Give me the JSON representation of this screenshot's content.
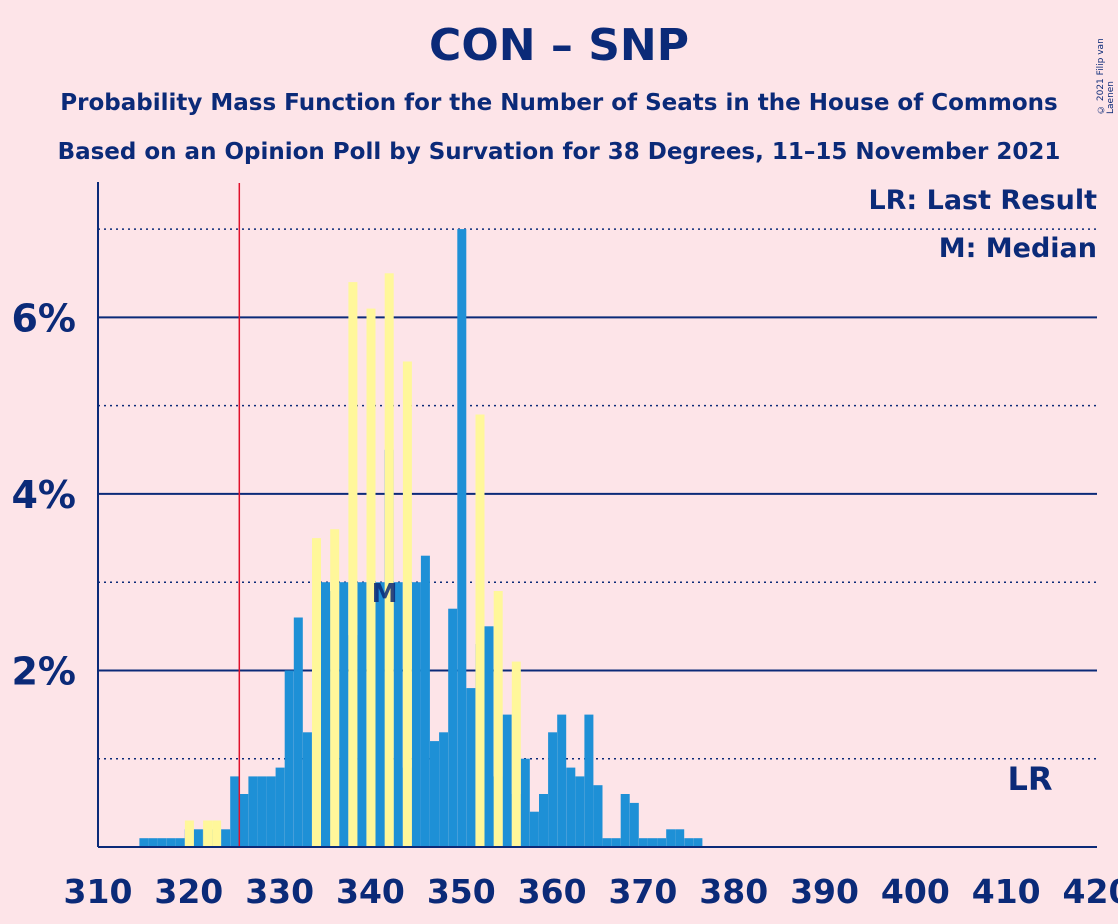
{
  "title": "CON – SNP",
  "subtitle1": "Probability Mass Function for the Number of Seats in the House of Commons",
  "subtitle2": "Based on an Opinion Poll by Survation for 38 Degrees, 11–15 November 2021",
  "copyright": "© 2021 Filip van Laenen",
  "legend": {
    "lr": "LR: Last Result",
    "m": "M: Median"
  },
  "lr_label": "LR",
  "median_label": "M",
  "colors": {
    "blue": "#1e90d6",
    "yellow": "#fff79a",
    "axis": "#0b2a78",
    "lr_line": "#e0102b",
    "background": "#fde4e8"
  },
  "chart_data": {
    "type": "bar",
    "xlim": [
      310,
      420
    ],
    "ylim": [
      0,
      7.5
    ],
    "x_ticks": [
      310,
      320,
      330,
      340,
      350,
      360,
      370,
      380,
      390,
      400,
      410,
      420
    ],
    "y_ticks": [
      {
        "value": 2,
        "label": "2%"
      },
      {
        "value": 4,
        "label": "4%"
      },
      {
        "value": 6,
        "label": "6%"
      }
    ],
    "last_result": 326,
    "median": 342,
    "series": [
      {
        "color": "blue",
        "x": [
          311,
          312,
          313,
          314,
          315,
          316,
          317,
          318,
          319,
          320,
          321,
          322,
          323,
          324,
          325,
          326,
          327,
          328,
          329,
          330,
          331,
          332,
          333,
          334,
          335,
          336,
          337,
          338,
          339,
          340,
          341,
          342,
          343,
          344,
          345,
          346,
          347,
          348,
          349,
          350,
          351,
          352,
          353,
          354,
          355,
          356,
          357,
          358,
          359,
          360,
          361,
          362,
          363,
          364,
          365,
          366,
          367,
          368,
          369,
          370,
          371,
          372,
          373,
          374,
          375,
          376,
          377,
          378,
          379,
          380,
          381,
          382,
          383,
          384,
          385,
          386,
          387,
          388,
          389,
          390,
          391,
          392,
          393,
          394,
          395,
          396,
          397,
          398,
          399,
          400,
          401,
          402,
          403,
          404,
          405,
          406,
          407,
          408,
          409,
          410,
          411,
          412,
          413,
          414,
          415,
          416,
          417,
          418,
          419
        ],
        "values": [
          0,
          0,
          0,
          0,
          0.1,
          0.1,
          0.1,
          0.1,
          0.1,
          0.2,
          0.2,
          0.2,
          0.2,
          0.2,
          0.8,
          0.6,
          0.8,
          0.8,
          0.8,
          0.9,
          2,
          2.6,
          1.3,
          1.8,
          3,
          2.9,
          3,
          2.4,
          3,
          3.4,
          3,
          4.5,
          3,
          0.9,
          3,
          3.3,
          1.2,
          1.3,
          2.7,
          7,
          1.8,
          2.3,
          2.5,
          0.8,
          1.5,
          0.6,
          1.0,
          0.4,
          0.6,
          1.3,
          1.5,
          0.9,
          0.8,
          1.5,
          0.7,
          0.1,
          0.1,
          0.6,
          0.5,
          0.1,
          0.1,
          0.1,
          0.2,
          0.2,
          0.1,
          0.1,
          0,
          0,
          0,
          0,
          0,
          0,
          0,
          0,
          0,
          0,
          0,
          0,
          0,
          0,
          0,
          0,
          0,
          0,
          0,
          0,
          0,
          0,
          0,
          0,
          0,
          0,
          0,
          0,
          0,
          0,
          0,
          0,
          0,
          0,
          0,
          0,
          0,
          0,
          0,
          0,
          0,
          0,
          0
        ]
      },
      {
        "color": "yellow",
        "x": [
          311,
          312,
          313,
          314,
          315,
          316,
          317,
          318,
          319,
          320,
          321,
          322,
          323,
          324,
          325,
          326,
          327,
          328,
          329,
          330,
          331,
          332,
          333,
          334,
          335,
          336,
          337,
          338,
          339,
          340,
          341,
          342,
          343,
          344,
          345,
          346,
          347,
          348,
          349,
          350,
          351,
          352,
          353,
          354,
          355,
          356,
          357,
          358,
          359,
          360,
          361,
          362,
          363,
          364,
          365,
          366,
          367,
          368,
          369,
          370,
          371,
          372,
          373,
          374,
          375,
          376,
          377,
          378,
          379,
          380,
          381,
          382,
          383,
          384,
          385,
          386,
          387,
          388,
          389,
          390,
          391,
          392,
          393,
          394,
          395,
          396,
          397,
          398,
          399,
          400,
          401,
          402,
          403,
          404,
          405,
          406,
          407,
          408,
          409,
          410,
          411,
          412,
          413,
          414,
          415,
          416,
          417,
          418,
          419
        ],
        "values": [
          0,
          0,
          0,
          0,
          0.1,
          0.1,
          0.1,
          0.1,
          0.1,
          0.2,
          0.3,
          0.2,
          0.3,
          0.3,
          0.8,
          0.6,
          0.8,
          0.8,
          0.8,
          0.9,
          2,
          2.6,
          1.3,
          1.8,
          3.5,
          2.9,
          3.6,
          2.4,
          6.4,
          3.4,
          6.1,
          4.5,
          6.5,
          0.9,
          5.5,
          3.3,
          1.2,
          1.3,
          2.7,
          7,
          1.8,
          2.3,
          4.9,
          0.8,
          2.9,
          0.6,
          2.1,
          0.4,
          0.6,
          1.3,
          1.5,
          0.9,
          0.8,
          1.5,
          0.7,
          0.1,
          0.1,
          0.6,
          0.5,
          0.1,
          0,
          0.1,
          0.2,
          0.2,
          0.1,
          0.1,
          0,
          0,
          0,
          0,
          0,
          0,
          0,
          0,
          0,
          0,
          0,
          0,
          0,
          0,
          0,
          0,
          0,
          0,
          0,
          0,
          0,
          0,
          0,
          0,
          0,
          0,
          0,
          0,
          0,
          0,
          0,
          0,
          0,
          0,
          0,
          0,
          0,
          0,
          0,
          0,
          0,
          0,
          0
        ]
      }
    ]
  }
}
